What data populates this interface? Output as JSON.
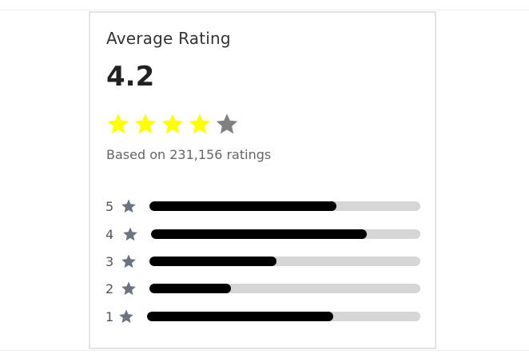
{
  "rating": {
    "title": "Average Rating",
    "score": "4.2",
    "summary": "Based on 231,156 ratings",
    "stars_filled": 4,
    "stars_total": 5,
    "star_colors": {
      "filled": "#ffff00",
      "empty": "#808080",
      "row_icon": "#6b7280"
    },
    "bar_colors": {
      "fill": "#000000",
      "track": "#d6d6d6"
    },
    "breakdown": [
      {
        "label": "5",
        "icon": "star-icon",
        "fill_fraction": 0.69
      },
      {
        "label": "4",
        "icon": "star-icon",
        "fill_fraction": 0.8
      },
      {
        "label": "3",
        "icon": "star-icon",
        "fill_fraction": 0.47
      },
      {
        "label": "2",
        "icon": "star-icon",
        "fill_fraction": 0.3
      },
      {
        "label": "1",
        "icon": "star-icon",
        "fill_fraction": 0.68
      }
    ]
  }
}
